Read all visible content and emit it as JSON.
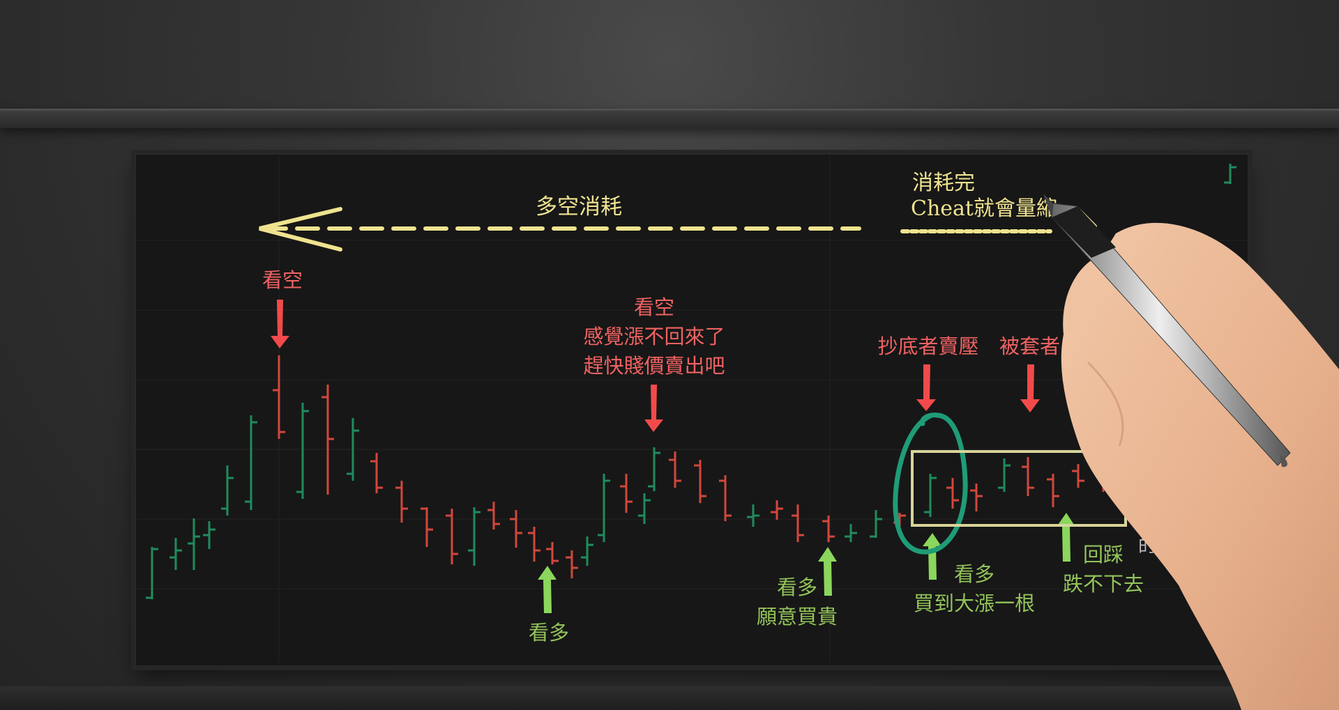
{
  "header_arrow": {
    "label": "多空消耗",
    "color": "#efe38f"
  },
  "top_right_note": {
    "line1": "消耗完",
    "line2": "Cheat就會量縮"
  },
  "annotations": {
    "bear_1": "看空",
    "bear_2": {
      "line1": "看空",
      "line2": "感覺漲不回來了",
      "line3": "趕快賤價賣出吧"
    },
    "bottom_fishers": "抄底者賣壓",
    "trapped": "被套者",
    "bull_1": "看多",
    "bull_2": {
      "line1": "看多",
      "line2": "願意買貴"
    },
    "bull_3": {
      "line1": "看多",
      "line2": "買到大漲一根"
    },
    "bull_4": {
      "line1": "回踩",
      "line2": "跌不下去"
    },
    "side_fragment": "的"
  },
  "colors": {
    "bear_text": "#f06262",
    "bull_text": "#93c45a",
    "bull_arrow": "#8bd65c",
    "bear_arrow": "#f24a4a",
    "candle_up": "#1f8c5e",
    "candle_down": "#d2473c",
    "circle": "#1f9c77",
    "box": "#d8d49a"
  },
  "chart_data": {
    "type": "ohlc",
    "bars": [
      {
        "o": 0.0,
        "h": 0.0,
        "l": 0.0,
        "c": 0.0
      }
    ]
  }
}
